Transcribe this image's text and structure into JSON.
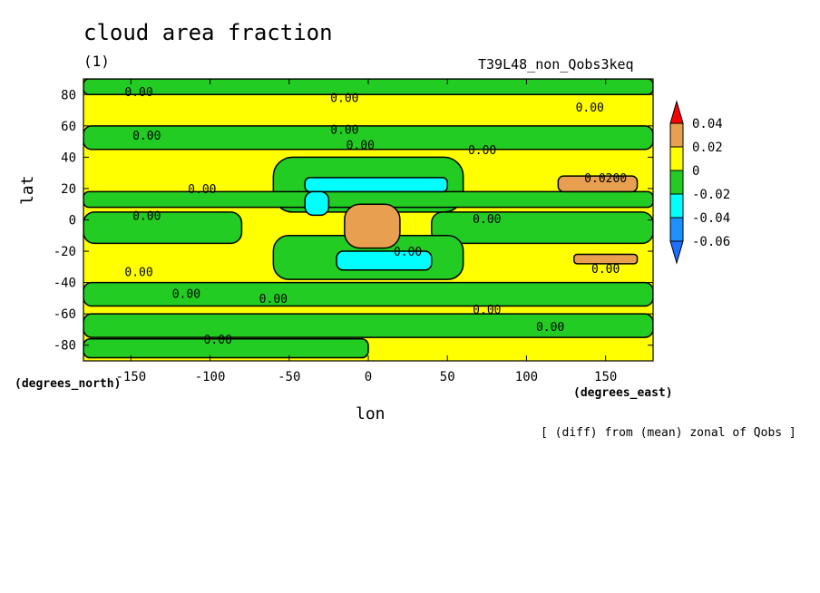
{
  "chart_data": {
    "type": "heatmap",
    "title": "cloud area fraction",
    "subtitle": "(1)",
    "run_label": "T39L48_non_Qobs3keq",
    "xlabel": "lon",
    "ylabel": "lat",
    "x_units": "(degrees_east)",
    "y_units": "(degrees_north)",
    "note": "[ (diff) from (mean) zonal of Qobs ]",
    "xlim": [
      -180,
      180
    ],
    "ylim": [
      -90,
      90
    ],
    "x_ticks": [
      -150,
      -100,
      -50,
      0,
      50,
      100,
      150
    ],
    "y_ticks": [
      -80,
      -60,
      -40,
      -20,
      0,
      20,
      40,
      60,
      80
    ],
    "legend": {
      "placement": "right",
      "levels": [
        "0.04",
        "0.02",
        "0",
        "-0.02",
        "-0.04",
        "-0.06"
      ],
      "bands": [
        {
          "from": 0.04,
          "to": 0.06,
          "color": "#ff0000"
        },
        {
          "from": 0.02,
          "to": 0.04,
          "color": "#e8a050"
        },
        {
          "from": 0.0,
          "to": 0.02,
          "color": "#ffff00"
        },
        {
          "from": -0.02,
          "to": 0.0,
          "color": "#22cc22"
        },
        {
          "from": -0.04,
          "to": -0.02,
          "color": "#00ffff"
        },
        {
          "from": -0.06,
          "to": -0.04,
          "color": "#1e90ff"
        },
        {
          "from": -0.08,
          "to": -0.06,
          "color": "#1e6fff"
        }
      ]
    },
    "regions": [
      {
        "level": 0.01,
        "lon": [
          -180,
          180
        ],
        "lat": [
          -90,
          90
        ]
      },
      {
        "level": -0.01,
        "lon": [
          -180,
          180
        ],
        "lat": [
          80,
          90
        ]
      },
      {
        "level": -0.01,
        "lon": [
          -180,
          180
        ],
        "lat": [
          45,
          60
        ]
      },
      {
        "level": -0.01,
        "lon": [
          -60,
          60
        ],
        "lat": [
          5,
          40
        ]
      },
      {
        "level": -0.01,
        "lon": [
          -180,
          180
        ],
        "lat": [
          8,
          18
        ]
      },
      {
        "level": -0.01,
        "lon": [
          -180,
          -80
        ],
        "lat": [
          -15,
          5
        ]
      },
      {
        "level": -0.01,
        "lon": [
          40,
          180
        ],
        "lat": [
          -15,
          5
        ]
      },
      {
        "level": -0.01,
        "lon": [
          -60,
          60
        ],
        "lat": [
          -38,
          -10
        ]
      },
      {
        "level": -0.01,
        "lon": [
          -180,
          180
        ],
        "lat": [
          -55,
          -40
        ]
      },
      {
        "level": -0.01,
        "lon": [
          -180,
          180
        ],
        "lat": [
          -75,
          -60
        ]
      },
      {
        "level": -0.01,
        "lon": [
          -180,
          0
        ],
        "lat": [
          -88,
          -76
        ]
      },
      {
        "level": 0.03,
        "lon": [
          -15,
          20
        ],
        "lat": [
          -18,
          10
        ]
      },
      {
        "level": 0.03,
        "lon": [
          120,
          170
        ],
        "lat": [
          18,
          28
        ]
      },
      {
        "level": 0.03,
        "lon": [
          130,
          170
        ],
        "lat": [
          -28,
          -22
        ]
      },
      {
        "level": -0.03,
        "lon": [
          -40,
          50
        ],
        "lat": [
          18,
          27
        ]
      },
      {
        "level": -0.03,
        "lon": [
          -40,
          -25
        ],
        "lat": [
          3,
          18
        ]
      },
      {
        "level": -0.03,
        "lon": [
          -20,
          40
        ],
        "lat": [
          -32,
          -20
        ]
      }
    ],
    "contour_labels": [
      {
        "text": "0.00",
        "lon": -145,
        "lat": 82
      },
      {
        "text": "0.00",
        "lon": -15,
        "lat": 78
      },
      {
        "text": "0.00",
        "lon": 140,
        "lat": 72
      },
      {
        "text": "0.00",
        "lon": -140,
        "lat": 54
      },
      {
        "text": "0.00",
        "lon": -15,
        "lat": 58
      },
      {
        "text": "0.00",
        "lon": -5,
        "lat": 48
      },
      {
        "text": "0.00",
        "lon": 72,
        "lat": 45
      },
      {
        "text": "0.0200",
        "lon": 150,
        "lat": 27
      },
      {
        "text": "0.00",
        "lon": -105,
        "lat": 20
      },
      {
        "text": "0.00",
        "lon": -140,
        "lat": 3
      },
      {
        "text": "0.00",
        "lon": 75,
        "lat": 1
      },
      {
        "text": "0.00",
        "lon": 25,
        "lat": -20
      },
      {
        "text": "0.00",
        "lon": -145,
        "lat": -33
      },
      {
        "text": "0.00",
        "lon": 150,
        "lat": -31
      },
      {
        "text": "0.00",
        "lon": -115,
        "lat": -47
      },
      {
        "text": "0.00",
        "lon": -60,
        "lat": -50
      },
      {
        "text": "0.00",
        "lon": 75,
        "lat": -57
      },
      {
        "text": "0.00",
        "lon": 115,
        "lat": -68
      },
      {
        "text": "0.00",
        "lon": -95,
        "lat": -76
      }
    ]
  }
}
